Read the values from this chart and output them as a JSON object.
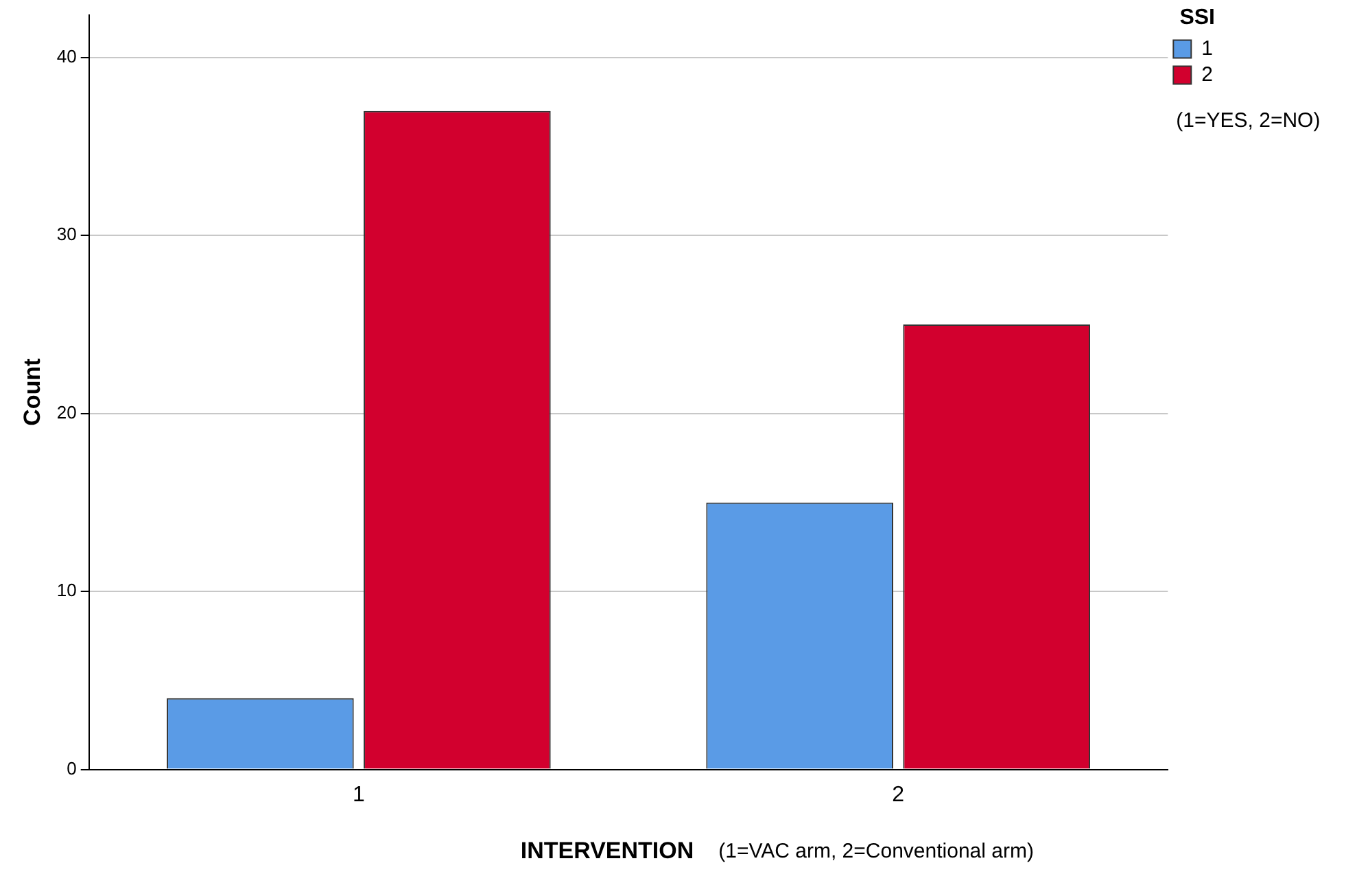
{
  "chart_data": {
    "type": "bar",
    "categories": [
      "1",
      "2"
    ],
    "series": [
      {
        "name": "1",
        "color": "#5a9be6",
        "values": [
          4,
          15
        ]
      },
      {
        "name": "2",
        "color": "#d2002e",
        "values": [
          37,
          25
        ]
      }
    ],
    "xlabel": "INTERVENTION",
    "ylabel": "Count",
    "legend_title": "SSI",
    "annotations": [
      "(1=VAC arm, 2=Conventional arm)",
      "(1=YES, 2=NO)"
    ],
    "ylim": [
      0,
      42.4
    ],
    "yticks": [
      0,
      10,
      20,
      30,
      40
    ],
    "grid": "y",
    "legend": "top right"
  }
}
